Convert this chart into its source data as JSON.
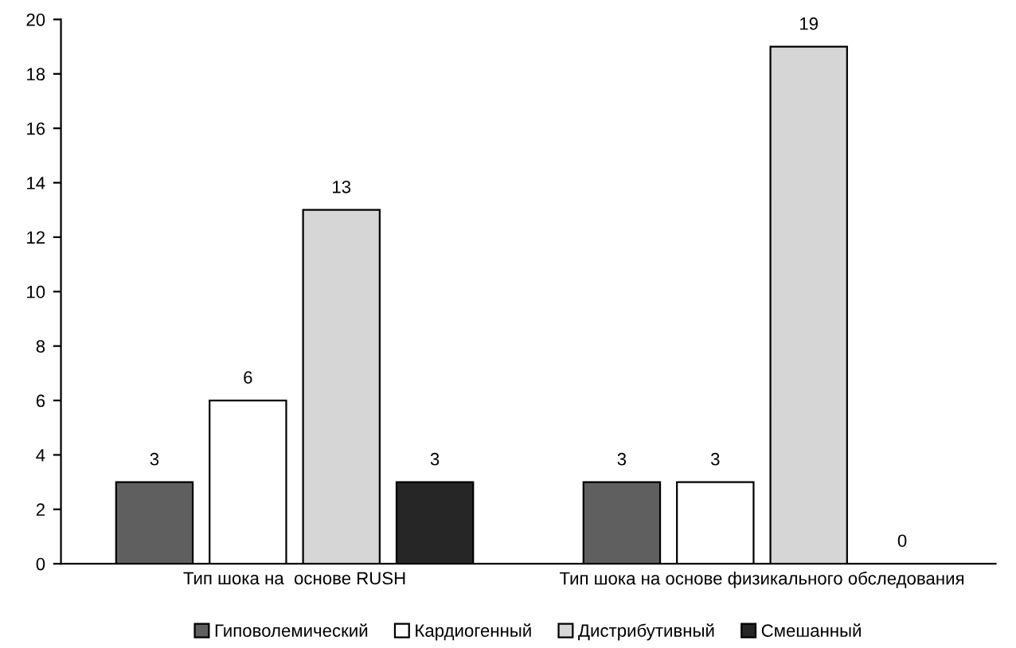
{
  "chart_data": {
    "type": "bar",
    "categories": [
      "Тип шока на  основе RUSH",
      "Тип шока на основе физикального обследования"
    ],
    "series": [
      {
        "name": "Гиповолемический",
        "color": "#5f5f5f",
        "values": [
          3,
          3
        ]
      },
      {
        "name": "Кардиогенный",
        "color": "#ffffff",
        "values": [
          6,
          3
        ]
      },
      {
        "name": "Дистрибутивный",
        "color": "#d6d6d6",
        "values": [
          13,
          19
        ]
      },
      {
        "name": "Смешанный",
        "color": "#262626",
        "values": [
          3,
          0
        ]
      }
    ],
    "ylim": [
      0,
      20
    ],
    "yticks": [
      0,
      2,
      4,
      6,
      8,
      10,
      12,
      14,
      16,
      18,
      20
    ],
    "data_labels": true,
    "legend": "bottom",
    "grid": false
  }
}
